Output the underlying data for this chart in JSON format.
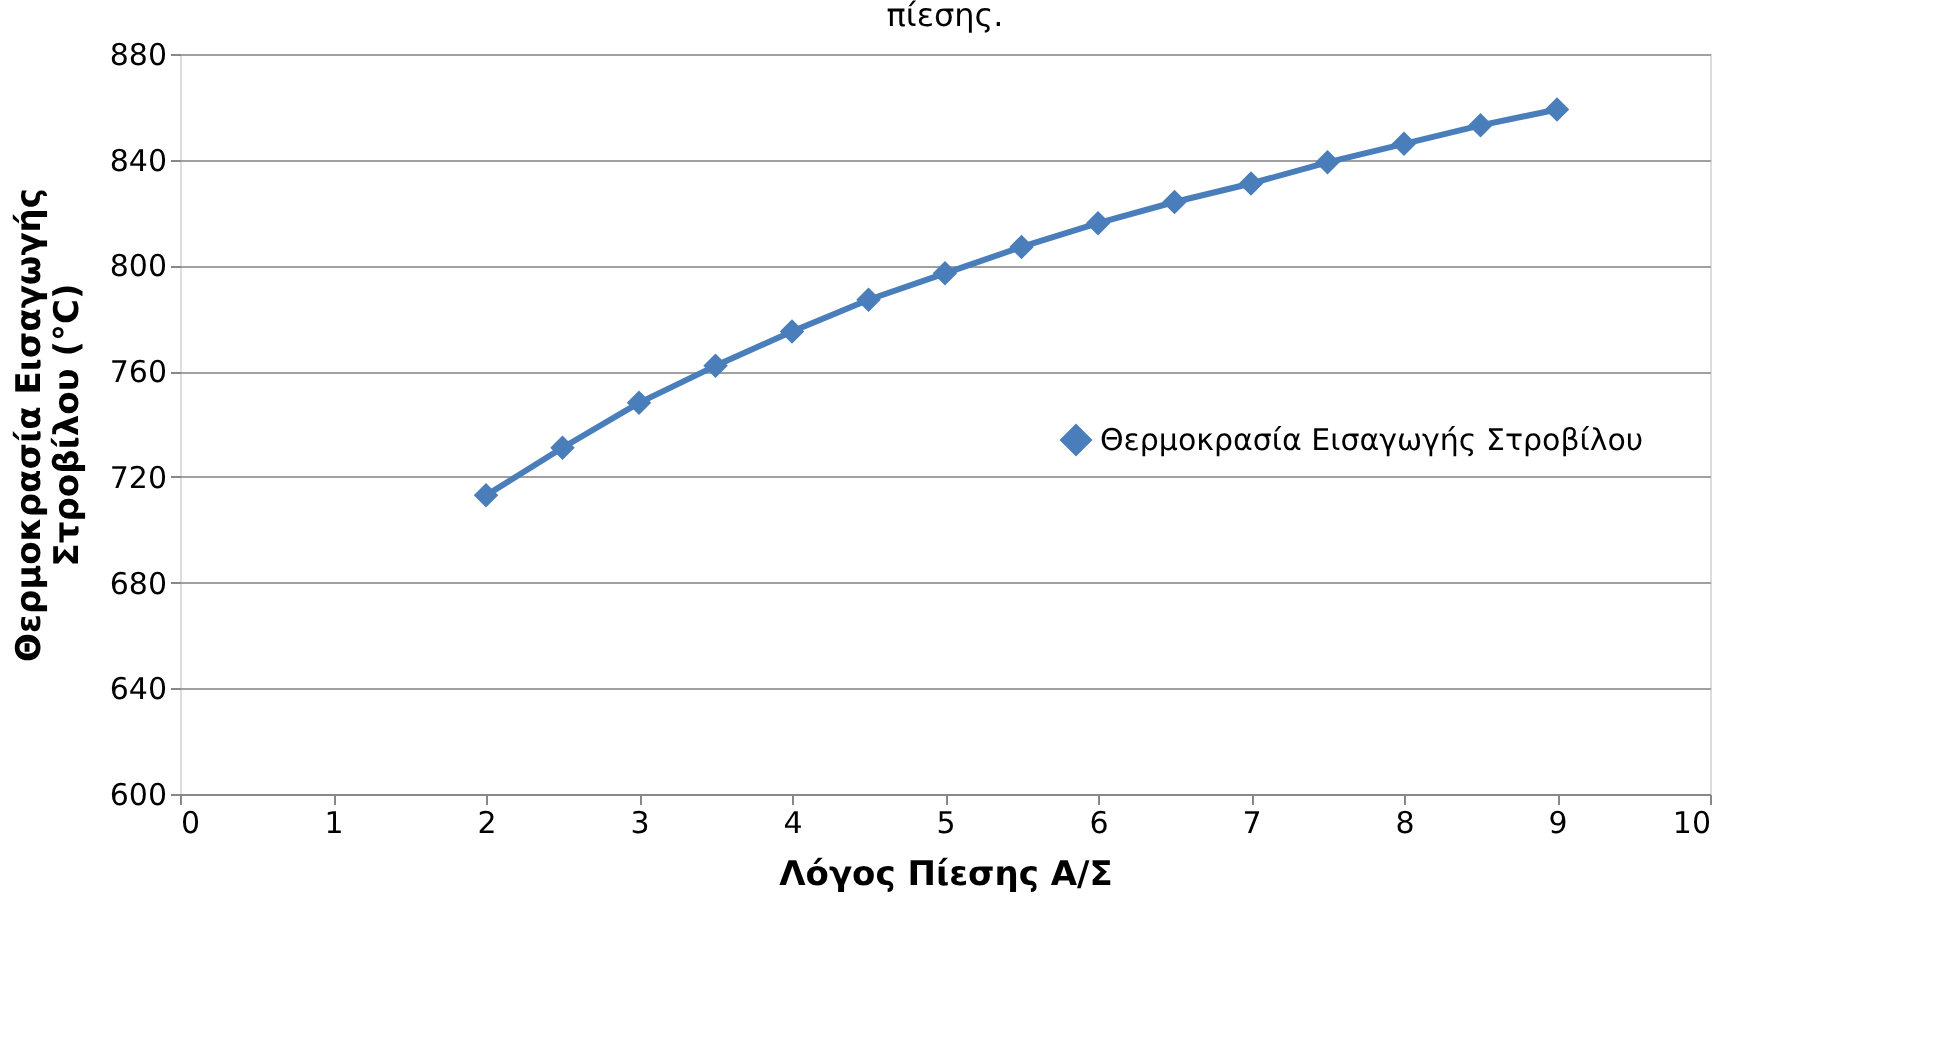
{
  "chart_data": {
    "type": "line",
    "title": "πίεσης.",
    "xlabel": "Λόγος Πίεσης Α/Σ",
    "ylabel": "Θερμοκρασία Εισαγωγής Στροβίλου (°C)",
    "x": [
      2,
      2.5,
      3,
      3.5,
      4,
      4.5,
      5,
      5.5,
      6,
      6.5,
      7,
      7.5,
      8,
      8.5,
      9
    ],
    "series": [
      {
        "name": "Θερμοκρασία Εισαγωγής Στροβίλου",
        "color": "#4a7ebb",
        "values": [
          713,
          731,
          748,
          762,
          775,
          787,
          797,
          807,
          816,
          824,
          831,
          839,
          846,
          853,
          859
        ]
      }
    ],
    "xlim": [
      0,
      10
    ],
    "xticks": [
      0,
      1,
      2,
      3,
      4,
      5,
      6,
      7,
      8,
      9,
      10
    ],
    "ylim": [
      600,
      880
    ],
    "yticks": [
      600,
      640,
      680,
      720,
      760,
      800,
      840,
      880
    ],
    "grid": "y",
    "legend": "right",
    "marker": "diamond",
    "line_style": "solid"
  }
}
